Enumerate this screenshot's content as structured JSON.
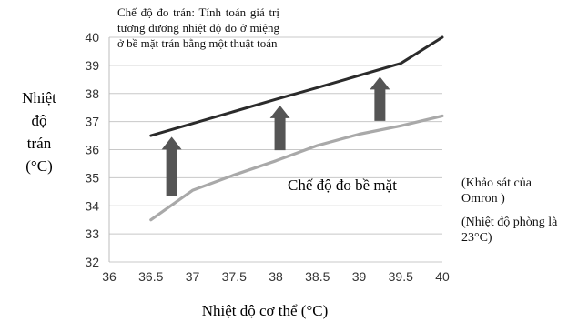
{
  "chart_data": {
    "type": "line",
    "x": [
      36.5,
      37,
      37.5,
      38,
      38.5,
      39,
      39.5,
      40
    ],
    "series": [
      {
        "name": "",
        "color": "#2b2b2b",
        "values": [
          36.5,
          36.93,
          37.36,
          37.79,
          38.21,
          38.64,
          39.07,
          40.0
        ]
      },
      {
        "name": "Chế độ đo bề mặt",
        "color": "#a9a9a9",
        "values": [
          33.5,
          34.55,
          35.1,
          35.6,
          36.15,
          36.55,
          36.85,
          37.2
        ]
      }
    ],
    "xlim": [
      36,
      40
    ],
    "ylim": [
      32,
      40
    ],
    "x_ticks": [
      "36",
      "36.5",
      "37",
      "37.5",
      "38",
      "38.5",
      "39",
      "39.5",
      "40"
    ],
    "y_ticks": [
      "32",
      "33",
      "34",
      "35",
      "36",
      "37",
      "38",
      "39",
      "40"
    ],
    "xlabel": "Nhiệt độ cơ thể (°C)",
    "ylabel_lines": [
      "Nhiệt",
      "độ",
      "trán",
      "(°C)"
    ],
    "grid": "horizontal",
    "arrows_at_x": [
      36.75,
      38.05,
      39.25
    ],
    "arrow_color": "#555555",
    "annotations": {
      "forehead_mode": "Chế độ đo trán: Tính toán giá trị tương đương nhiệt độ đo ở miệng ở bề mặt trán bằng một thuật toán",
      "surface_mode": "Chế độ đo bề mặt",
      "source": "(Khảo sát của Omron )",
      "room_temp": "(Nhiệt độ phòng là 23°C)"
    }
  }
}
